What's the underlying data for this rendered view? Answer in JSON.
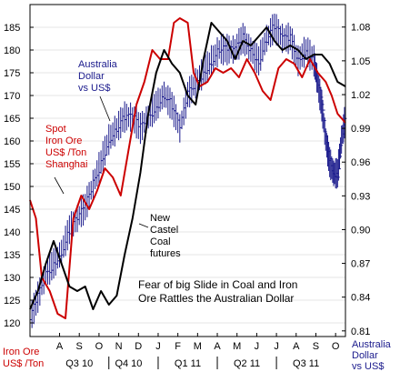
{
  "chart_data": {
    "type": "line",
    "title": "Fear of big Slide in Coal and Iron Ore Rattles the Australian Dollar",
    "title_lines": [
      "Fear of big Slide in Coal and Iron",
      "Ore Rattles the Australian Dollar"
    ],
    "left_axis": {
      "label_lines": [
        "Iron Ore",
        "US$ /Ton"
      ],
      "ylim": [
        117,
        190
      ],
      "ticks": [
        "120",
        "125",
        "130",
        "135",
        "140",
        "145",
        "150",
        "155",
        "160",
        "165",
        "170",
        "175",
        "180",
        "185"
      ],
      "tick_values": [
        120,
        125,
        130,
        135,
        140,
        145,
        150,
        155,
        160,
        165,
        170,
        175,
        180,
        185
      ],
      "color": "#cc0000"
    },
    "right_axis": {
      "label_lines": [
        "Australia",
        "Dollar",
        "vs US$"
      ],
      "ylim": [
        0.805,
        1.1
      ],
      "ticks": [
        "0.81",
        "0.84",
        "0.87",
        "0.90",
        "0.93",
        "0.96",
        "0.99",
        "1.02",
        "1.05",
        "1.08"
      ],
      "tick_values": [
        0.81,
        0.84,
        0.87,
        0.9,
        0.93,
        0.96,
        0.99,
        1.02,
        1.05,
        1.08
      ],
      "color": "#1a1a8c"
    },
    "x_axis": {
      "xlim": [
        0,
        16
      ],
      "months": [
        "A",
        "S",
        "O",
        "N",
        "D",
        "J",
        "F",
        "M",
        "A",
        "M",
        "J",
        "J",
        "A",
        "S",
        "O"
      ],
      "month_positions": [
        1.5,
        2.5,
        3.5,
        4.5,
        5.5,
        6.5,
        7.5,
        8.5,
        9.5,
        10.5,
        11.5,
        12.5,
        13.5,
        14.5,
        15.5
      ],
      "quarters": [
        "Q3 10",
        "Q4 10",
        "Q1 11",
        "Q2 11",
        "Q3 11"
      ],
      "quarter_positions": [
        2.5,
        5.0,
        8.0,
        11.0,
        14.0
      ],
      "quarter_dividers": [
        4.0,
        6.5,
        9.5,
        12.5
      ]
    },
    "annotations": {
      "aud": [
        "Australia",
        "Dollar",
        "vs US$"
      ],
      "iron": [
        "Spot",
        "Iron Ore",
        "US$ /Ton",
        "Shanghai"
      ],
      "coal": [
        "New",
        "Castel",
        "Coal",
        "futures"
      ]
    },
    "series": [
      {
        "name": "Spot Iron Ore US$ /Ton Shanghai",
        "color": "#cc0000",
        "axis": "left",
        "x": [
          0,
          0.3,
          0.6,
          1.0,
          1.4,
          1.8,
          2.2,
          2.6,
          3.0,
          3.4,
          3.8,
          4.2,
          4.6,
          5.0,
          5.4,
          5.8,
          6.2,
          6.6,
          7.0,
          7.3,
          7.6,
          8.0,
          8.3,
          8.6,
          9.0,
          9.4,
          9.8,
          10.2,
          10.6,
          11.0,
          11.4,
          11.8,
          12.2,
          12.6,
          13.0,
          13.4,
          13.8,
          14.2,
          14.6,
          15.0,
          15.3,
          15.6,
          16.0
        ],
        "values": [
          147,
          143,
          130,
          127,
          122,
          121,
          143,
          148,
          145,
          149,
          154,
          152,
          148,
          158,
          168,
          173,
          180,
          178,
          178,
          186,
          187,
          186,
          175,
          172,
          173,
          176,
          175,
          176,
          174,
          178,
          175,
          171,
          169,
          176,
          178,
          177,
          174,
          178,
          175,
          173,
          170,
          166,
          164
        ]
      },
      {
        "name": "New Castel Coal futures",
        "color": "#000000",
        "axis": "left",
        "x": [
          0,
          0.4,
          0.8,
          1.2,
          1.6,
          2.0,
          2.4,
          2.8,
          3.2,
          3.6,
          4.0,
          4.4,
          4.8,
          5.2,
          5.6,
          6.0,
          6.4,
          6.8,
          7.2,
          7.6,
          8.0,
          8.4,
          8.8,
          9.2,
          9.6,
          10.0,
          10.4,
          10.8,
          11.2,
          11.6,
          12.0,
          12.4,
          12.8,
          13.2,
          13.6,
          14.0,
          14.4,
          14.8,
          15.2,
          15.6,
          16.0
        ],
        "values": [
          123,
          127,
          133,
          138,
          133,
          128,
          127,
          128,
          123,
          127,
          124,
          126,
          135,
          143,
          153,
          166,
          175,
          180,
          177,
          175,
          170,
          168,
          178,
          186,
          184,
          182,
          178,
          182,
          181,
          183,
          185,
          182,
          180,
          181,
          180,
          178,
          179,
          179,
          177,
          173,
          172
        ]
      },
      {
        "name": "Australia Dollar vs US$",
        "color": "#1a1a8c",
        "axis": "right",
        "x": [
          0,
          0.4,
          0.8,
          1.2,
          1.6,
          2.0,
          2.4,
          2.8,
          3.2,
          3.6,
          4.0,
          4.4,
          4.8,
          5.2,
          5.6,
          6.0,
          6.4,
          6.8,
          7.2,
          7.6,
          8.0,
          8.4,
          8.8,
          9.2,
          9.6,
          10.0,
          10.4,
          10.8,
          11.2,
          11.6,
          12.0,
          12.4,
          12.8,
          13.2,
          13.6,
          14.0,
          14.4,
          14.6,
          14.8,
          15.0,
          15.2,
          15.4,
          15.6,
          15.8,
          16.0
        ],
        "values": [
          0.82,
          0.84,
          0.86,
          0.87,
          0.88,
          0.9,
          0.91,
          0.92,
          0.94,
          0.96,
          0.98,
          0.99,
          1.0,
          1.0,
          0.99,
          1.0,
          1.01,
          1.02,
          1.01,
          0.99,
          1.02,
          1.03,
          1.04,
          1.05,
          1.06,
          1.06,
          1.06,
          1.07,
          1.06,
          1.05,
          1.07,
          1.08,
          1.07,
          1.07,
          1.05,
          1.06,
          1.05,
          1.03,
          1.01,
          0.98,
          0.96,
          0.95,
          0.95,
          0.98,
          1.0
        ]
      }
    ]
  }
}
